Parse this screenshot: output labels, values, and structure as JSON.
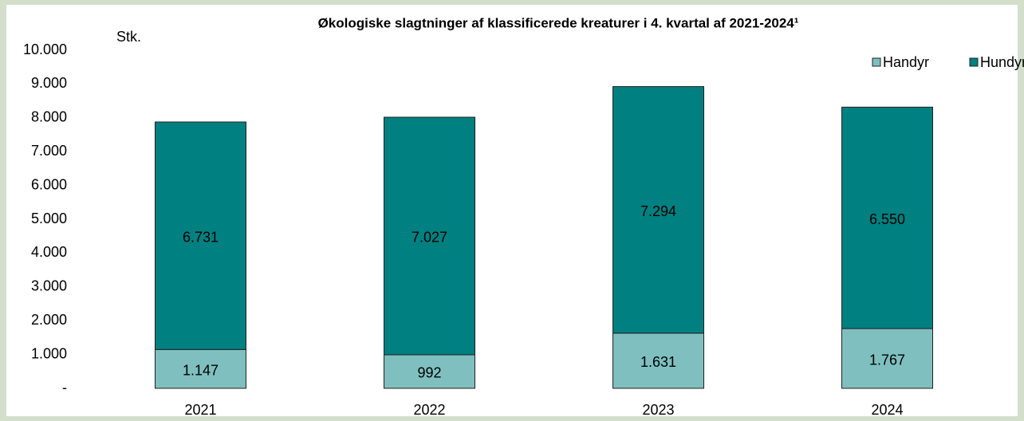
{
  "chart_data": {
    "type": "stacked_bar",
    "title": "Økologiske slagtninger af klassificerede kreaturer i 4. kvartal af 2021-2024¹",
    "y_label": "Stk.",
    "categories": [
      "2021",
      "2022",
      "2023",
      "2024"
    ],
    "series": [
      {
        "name": "Handyr",
        "color": "#7fbfbf",
        "values": [
          1147,
          992,
          1631,
          1767
        ],
        "value_labels": [
          "1.147",
          "992",
          "1.631",
          "1.767"
        ]
      },
      {
        "name": "Hundyr",
        "color": "#008080",
        "values": [
          6731,
          7027,
          7294,
          6550
        ],
        "value_labels": [
          "6.731",
          "7.027",
          "7.294",
          "6.550"
        ]
      }
    ],
    "ylim": [
      0,
      10000
    ],
    "yticks": [
      {
        "value": 0,
        "label": "-"
      },
      {
        "value": 1000,
        "label": "1.000"
      },
      {
        "value": 2000,
        "label": "2.000"
      },
      {
        "value": 3000,
        "label": "3.000"
      },
      {
        "value": 4000,
        "label": "4.000"
      },
      {
        "value": 5000,
        "label": "5.000"
      },
      {
        "value": 6000,
        "label": "6.000"
      },
      {
        "value": 7000,
        "label": "7.000"
      },
      {
        "value": 8000,
        "label": "8.000"
      },
      {
        "value": 9000,
        "label": "9.000"
      },
      {
        "value": 10000,
        "label": "10.000"
      }
    ],
    "grid": false,
    "legend": "top-right"
  }
}
